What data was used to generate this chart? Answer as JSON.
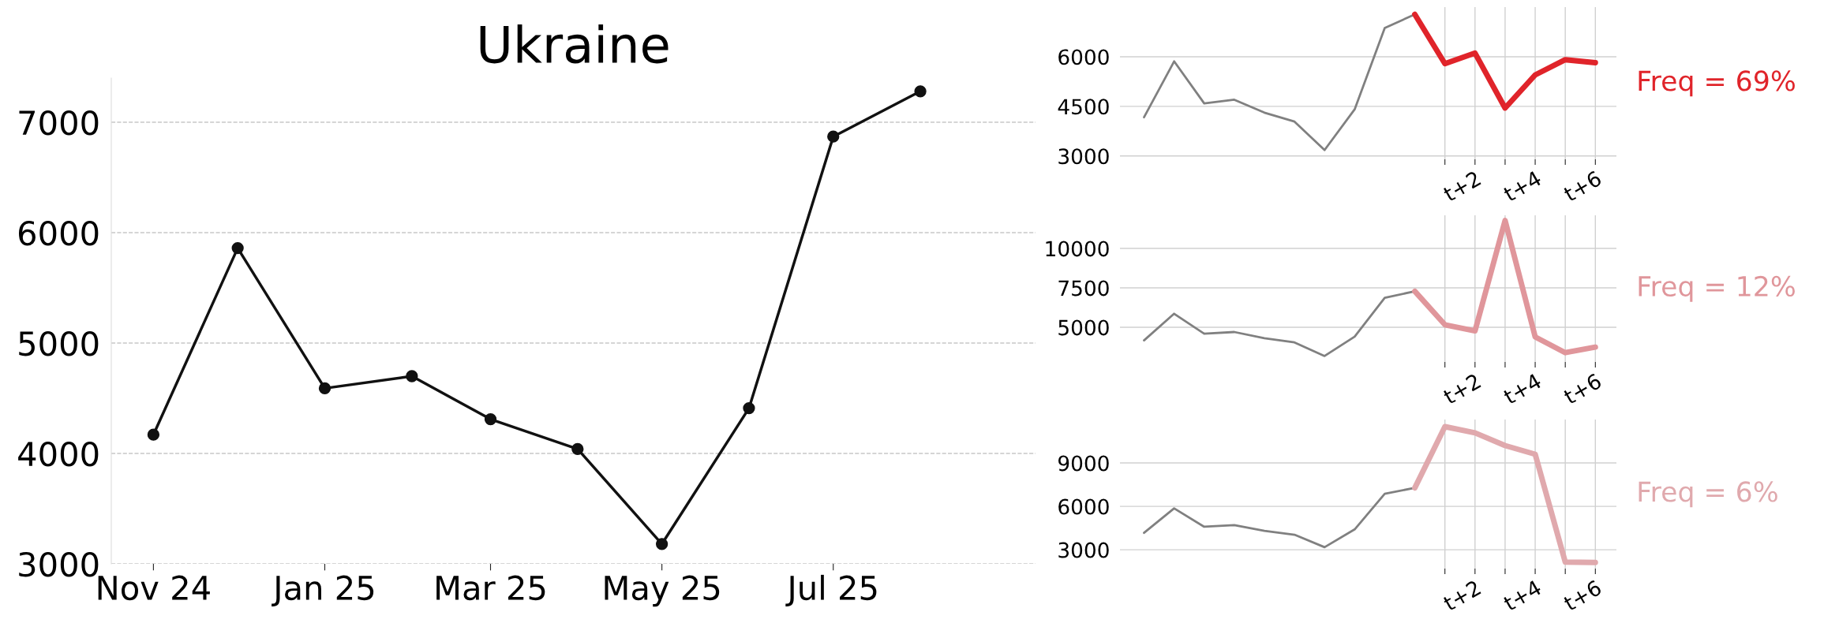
{
  "chart_data": [
    {
      "type": "line",
      "title": "Ukraine",
      "x": [
        "2024-11",
        "2024-12",
        "2025-01",
        "2025-02",
        "2025-03",
        "2025-04",
        "2025-05",
        "2025-06",
        "2025-07",
        "2025-08"
      ],
      "series": [
        {
          "color": "#111111",
          "values": [
            4170,
            5860,
            4590,
            4700,
            4310,
            4040,
            3180,
            4410,
            6870,
            7280
          ]
        }
      ],
      "xlim": [
        "2024-10-17",
        "2025-09-11"
      ],
      "xticks": [
        {
          "value": "2024-11",
          "label": "Nov 24"
        },
        {
          "value": "2025-01",
          "label": "Jan 25"
        },
        {
          "value": "2025-03",
          "label": "Mar 25"
        },
        {
          "value": "2025-05",
          "label": "May 25"
        },
        {
          "value": "2025-07",
          "label": "Jul 25"
        }
      ],
      "ylim": [
        3000,
        7400
      ],
      "yticks": [
        3000,
        4000,
        5000,
        6000,
        7000
      ],
      "grid": "y",
      "marker": "circle",
      "legend": false
    },
    {
      "type": "line",
      "categories": [
        null,
        null,
        null,
        null,
        null,
        null,
        null,
        null,
        null,
        null,
        null,
        "t+2",
        null,
        "t+4",
        null,
        "t+6"
      ],
      "series": [
        {
          "color": "#808080",
          "values": [
            4170,
            5860,
            4590,
            4700,
            4310,
            4040,
            3180,
            4410,
            6870,
            7280,
            null,
            null,
            null,
            null,
            null,
            null
          ]
        },
        {
          "color": "#e0242a",
          "values": [
            null,
            null,
            null,
            null,
            null,
            null,
            null,
            null,
            null,
            7280,
            5790,
            6110,
            4450,
            5450,
            5910,
            5820
          ]
        }
      ],
      "ylim": [
        2900,
        7500
      ],
      "yticks": [
        3000,
        4500,
        6000
      ],
      "grid": true,
      "annotations": [
        "Freq = 69%"
      ],
      "legend": false
    },
    {
      "type": "line",
      "categories": [
        null,
        null,
        null,
        null,
        null,
        null,
        null,
        null,
        null,
        null,
        null,
        "t+2",
        null,
        "t+4",
        null,
        "t+6"
      ],
      "series": [
        {
          "color": "#808080",
          "values": [
            4170,
            5860,
            4590,
            4700,
            4310,
            4040,
            3180,
            4410,
            6870,
            7280,
            null,
            null,
            null,
            null,
            null,
            null
          ]
        },
        {
          "color": "#e0969b",
          "values": [
            null,
            null,
            null,
            null,
            null,
            null,
            null,
            null,
            null,
            7280,
            5160,
            4770,
            11770,
            4390,
            3390,
            3740
          ]
        }
      ],
      "ylim": [
        2800,
        12100
      ],
      "yticks": [
        5000,
        7500,
        10000
      ],
      "grid": true,
      "annotations": [
        "Freq = 12%"
      ],
      "legend": false
    },
    {
      "type": "line",
      "categories": [
        null,
        null,
        null,
        null,
        null,
        null,
        null,
        null,
        null,
        null,
        null,
        "t+2",
        null,
        "t+4",
        null,
        "t+6"
      ],
      "series": [
        {
          "color": "#808080",
          "values": [
            4170,
            5860,
            4590,
            4700,
            4310,
            4040,
            3180,
            4410,
            6870,
            7280,
            null,
            null,
            null,
            null,
            null,
            null
          ]
        },
        {
          "color": "#e0a9ad",
          "values": [
            null,
            null,
            null,
            null,
            null,
            null,
            null,
            null,
            null,
            7280,
            11510,
            11080,
            10200,
            9600,
            2150,
            2120
          ]
        }
      ],
      "ylim": [
        1700,
        12000
      ],
      "yticks": [
        3000,
        6000,
        9000
      ],
      "grid": true,
      "annotations": [
        "Freq = 6%"
      ],
      "legend": false
    }
  ]
}
